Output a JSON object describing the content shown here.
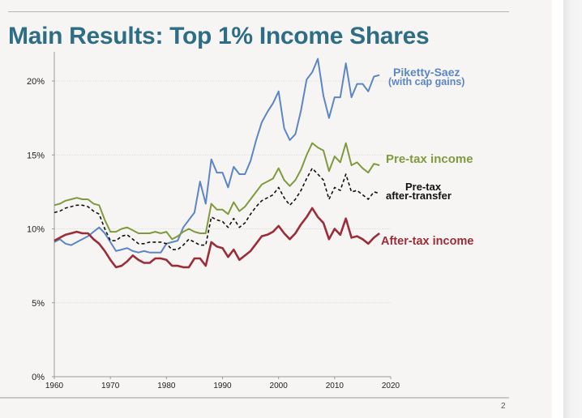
{
  "slide": {
    "title": "Main Results: Top 1% Income Shares",
    "page_number": "2"
  },
  "colors": {
    "title": "#2d6e86",
    "piketty_saez": "#5b86c5",
    "pre_tax": "#7f9a3e",
    "pre_tax_after_transfer": "#111111",
    "after_tax": "#9a2d37"
  },
  "chart_data": {
    "type": "line",
    "title": "Main Results: Top 1% Income Shares",
    "xlabel": "",
    "ylabel": "",
    "xlim": [
      1960,
      2020
    ],
    "ylim": [
      0,
      22
    ],
    "x_ticks": [
      "1960",
      "1970",
      "1980",
      "1990",
      "2000",
      "2010",
      "2020"
    ],
    "y_ticks": [
      "0%",
      "5%",
      "10%",
      "15%",
      "20%"
    ],
    "grid": "horizontal",
    "legend": "inline labels at right end of lines",
    "x": [
      1960,
      1961,
      1962,
      1963,
      1964,
      1965,
      1966,
      1967,
      1968,
      1969,
      1970,
      1971,
      1972,
      1973,
      1974,
      1975,
      1976,
      1977,
      1978,
      1979,
      1980,
      1981,
      1982,
      1983,
      1984,
      1985,
      1986,
      1987,
      1988,
      1989,
      1990,
      1991,
      1992,
      1993,
      1994,
      1995,
      1996,
      1997,
      1998,
      1999,
      2000,
      2001,
      2002,
      2003,
      2004,
      2005,
      2006,
      2007,
      2008,
      2009,
      2010,
      2011,
      2012,
      2013,
      2014,
      2015,
      2016,
      2017,
      2018
    ],
    "series": [
      {
        "name": "Piketty-Saez",
        "label_line1": "Piketty-Saez",
        "label_line2": "(with cap gains)",
        "style": "solid",
        "values": [
          9.1,
          9.3,
          9.0,
          8.9,
          9.1,
          9.3,
          9.5,
          9.8,
          10.1,
          9.7,
          9.1,
          8.5,
          8.6,
          8.7,
          8.5,
          8.4,
          8.5,
          8.4,
          8.4,
          8.4,
          9.0,
          9.1,
          9.2,
          10.1,
          10.6,
          11.1,
          13.2,
          11.7,
          14.7,
          13.8,
          13.8,
          12.8,
          14.2,
          13.7,
          13.7,
          14.6,
          16.0,
          17.2,
          17.9,
          18.5,
          19.3,
          16.8,
          16.0,
          16.4,
          18.0,
          20.1,
          20.6,
          21.5,
          19.0,
          17.5,
          18.9,
          18.9,
          21.2,
          18.9,
          19.8,
          19.8,
          19.3,
          20.3,
          20.4
        ]
      },
      {
        "name": "Pre-tax income",
        "label_line1": "Pre-tax income",
        "style": "solid",
        "values": [
          11.6,
          11.7,
          11.9,
          12.0,
          12.1,
          12.0,
          12.0,
          11.7,
          11.6,
          10.6,
          9.8,
          9.8,
          10.0,
          10.1,
          9.9,
          9.7,
          9.7,
          9.7,
          9.8,
          9.7,
          9.8,
          9.3,
          9.5,
          9.8,
          10.0,
          9.8,
          9.7,
          9.7,
          11.7,
          11.3,
          11.3,
          11.0,
          11.8,
          11.2,
          11.5,
          12.0,
          12.5,
          13.0,
          13.2,
          13.4,
          14.1,
          13.3,
          12.9,
          13.3,
          14.0,
          15.0,
          15.8,
          15.5,
          15.3,
          13.9,
          14.9,
          14.5,
          15.8,
          14.3,
          14.5,
          14.1,
          13.8,
          14.4,
          14.3
        ]
      },
      {
        "name": "Pre-tax after-transfer",
        "label_line1": "Pre-tax",
        "label_line2": "after-transfer",
        "style": "dashed",
        "values": [
          11.1,
          11.2,
          11.4,
          11.5,
          11.6,
          11.6,
          11.5,
          11.2,
          11.0,
          10.0,
          9.2,
          9.2,
          9.5,
          9.6,
          9.3,
          9.0,
          9.0,
          9.1,
          9.1,
          9.1,
          9.0,
          8.6,
          8.6,
          8.9,
          9.3,
          9.1,
          8.9,
          8.9,
          10.8,
          10.6,
          10.5,
          10.1,
          10.7,
          10.1,
          10.4,
          11.0,
          11.5,
          11.9,
          12.1,
          12.3,
          12.8,
          12.1,
          11.6,
          12.0,
          12.6,
          13.4,
          14.1,
          13.7,
          13.3,
          12.0,
          12.8,
          12.6,
          13.7,
          12.5,
          12.6,
          12.3,
          12.0,
          12.5,
          12.4
        ]
      },
      {
        "name": "After-tax income",
        "label_line1": "After-tax income",
        "style": "solid",
        "values": [
          9.2,
          9.4,
          9.6,
          9.7,
          9.8,
          9.7,
          9.7,
          9.3,
          9.0,
          8.5,
          7.9,
          7.4,
          7.5,
          7.8,
          8.2,
          7.9,
          7.7,
          7.7,
          8.0,
          8.0,
          7.9,
          7.5,
          7.5,
          7.4,
          7.4,
          8.0,
          8.0,
          7.5,
          9.1,
          8.8,
          8.7,
          8.1,
          8.6,
          7.9,
          8.2,
          8.5,
          9.0,
          9.5,
          9.6,
          9.8,
          10.2,
          9.7,
          9.3,
          9.7,
          10.3,
          10.8,
          11.4,
          10.8,
          10.4,
          9.3,
          10.0,
          9.6,
          10.7,
          9.4,
          9.5,
          9.3,
          9.0,
          9.4,
          9.7
        ]
      }
    ]
  }
}
